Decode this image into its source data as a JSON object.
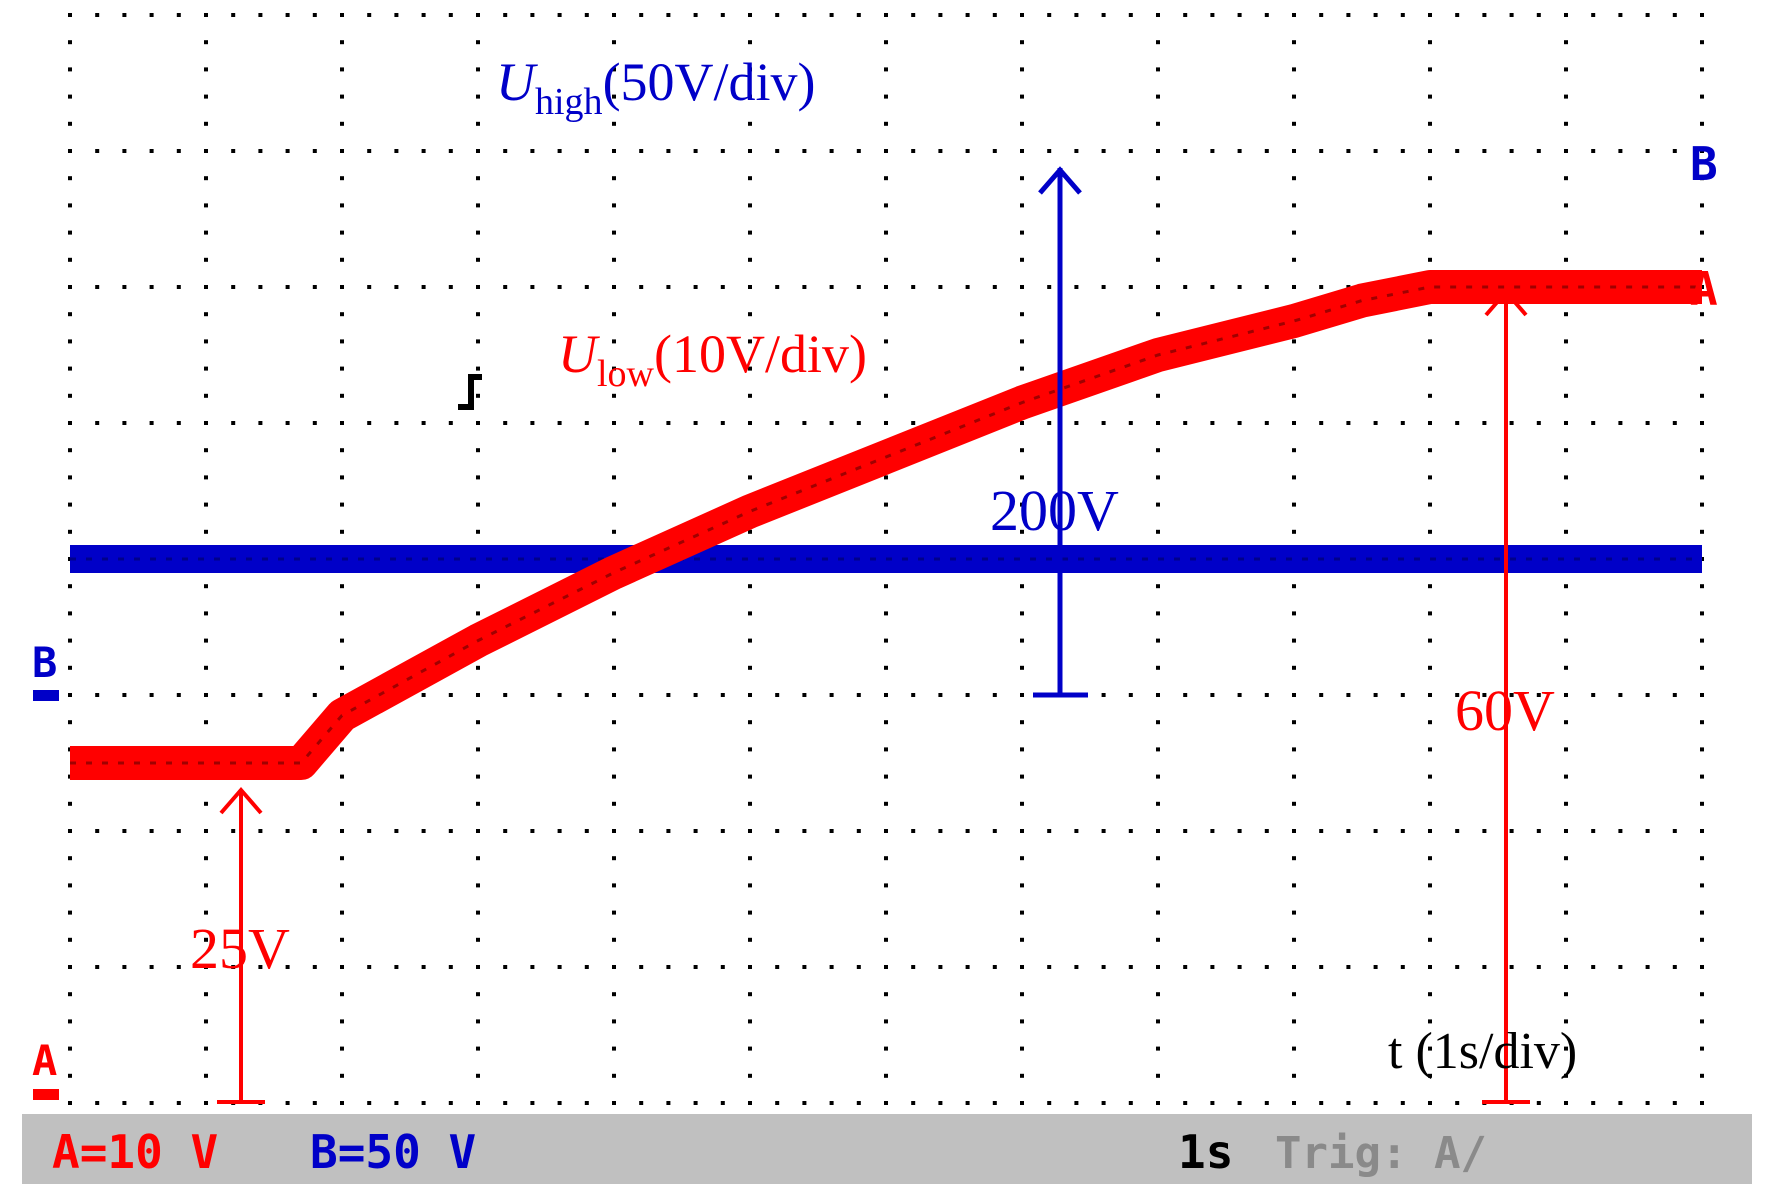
{
  "status_bar": {
    "ch_a": "A=10 V",
    "ch_b": "B=50 V",
    "timebase": "1s",
    "trigger": "Trig: A∕"
  },
  "markers": {
    "a": "A",
    "b": "B"
  },
  "colors": {
    "ch_a": "#ff0000",
    "ch_b": "#0000c8",
    "grid": "#000000",
    "status_bg": "#c0c0c0"
  },
  "chart_data": {
    "type": "line",
    "x_unit_per_div": "1s",
    "xlim": [
      0,
      12
    ],
    "ylim_div": [
      0,
      8
    ],
    "grid": true,
    "series": [
      {
        "name": "U_high (50V/div)",
        "channel": "B",
        "volts_per_div": 50,
        "x": [
          0,
          12
        ],
        "y": [
          200,
          200
        ]
      },
      {
        "name": "U_low (10V/div)",
        "channel": "A",
        "volts_per_div": 10,
        "x": [
          0,
          1.0,
          1.7,
          2.0,
          3.0,
          4.0,
          5.0,
          6.0,
          7.0,
          8.0,
          9.0,
          9.5,
          10.0,
          12.0
        ],
        "y": [
          25,
          25,
          25,
          28.5,
          34,
          39,
          43.5,
          47.5,
          51.5,
          55,
          57.5,
          59,
          60,
          60
        ]
      }
    ],
    "annotations": {
      "u_high_prefix": "U",
      "u_high_sub": "high",
      "u_high_suffix": "(50V/div)",
      "u_low_prefix": "U",
      "u_low_sub": "low",
      "u_low_suffix": "(10V/div)",
      "v200": "200V",
      "v60": "60V",
      "v25": "25V",
      "time_label": "t (1s/div)"
    }
  }
}
